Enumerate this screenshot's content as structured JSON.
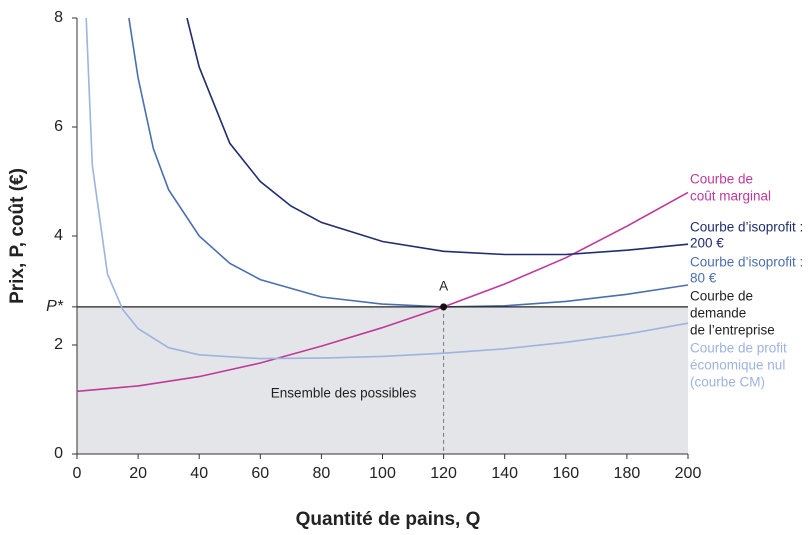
{
  "chart_data": {
    "type": "line",
    "xlabel": "Quantité de pains, Q",
    "ylabel": "Prix, P, coût (€)",
    "xlim": [
      0,
      200
    ],
    "ylim": [
      0,
      8
    ],
    "xticks": [
      0,
      20,
      40,
      60,
      80,
      100,
      120,
      140,
      160,
      180,
      200
    ],
    "yticks": [
      0,
      2,
      {
        "value": 2.7,
        "label": "P*"
      },
      4,
      6,
      8
    ],
    "series": [
      {
        "name": [
          "Courbe de",
          "coût marginal"
        ],
        "color": "#c0399a",
        "x": [
          0,
          20,
          40,
          60,
          80,
          100,
          120,
          140,
          160,
          180,
          200
        ],
        "values": [
          1.15,
          1.25,
          1.42,
          1.67,
          1.98,
          2.32,
          2.7,
          3.12,
          3.6,
          4.18,
          4.8
        ]
      },
      {
        "name": [
          "Courbe d’isoprofit :",
          "200 €"
        ],
        "color": "#1f2d6e",
        "x": [
          36,
          40,
          50,
          60,
          70,
          80,
          100,
          120,
          140,
          160,
          180,
          200
        ],
        "values": [
          8,
          7.1,
          5.7,
          5.0,
          4.55,
          4.25,
          3.9,
          3.72,
          3.66,
          3.66,
          3.74,
          3.85
        ]
      },
      {
        "name": [
          "Courbe d’isoprofit :",
          "80 €"
        ],
        "color": "#4a6fb0",
        "x": [
          17,
          20,
          25,
          30,
          40,
          50,
          60,
          80,
          100,
          120,
          140,
          160,
          180,
          200
        ],
        "values": [
          8,
          6.9,
          5.6,
          4.85,
          4.0,
          3.5,
          3.2,
          2.88,
          2.75,
          2.7,
          2.72,
          2.8,
          2.93,
          3.1
        ]
      },
      {
        "name": [
          "Courbe de",
          "demande",
          "de l’entreprise"
        ],
        "color": "#222222",
        "x": [
          0,
          200
        ],
        "values": [
          2.7,
          2.7
        ]
      },
      {
        "name": [
          "Courbe de profit",
          "économique nul",
          "(courbe CM)"
        ],
        "color": "#9db3e0",
        "x": [
          3,
          5,
          10,
          15,
          20,
          30,
          40,
          60,
          80,
          100,
          120,
          140,
          160,
          180,
          200
        ],
        "values": [
          8,
          5.3,
          3.3,
          2.65,
          2.3,
          1.95,
          1.82,
          1.75,
          1.76,
          1.79,
          1.85,
          1.93,
          2.05,
          2.2,
          2.4
        ]
      }
    ],
    "point": {
      "label": "A",
      "x": 120,
      "y": 2.7
    },
    "region_label": "Ensemble des possibles"
  }
}
